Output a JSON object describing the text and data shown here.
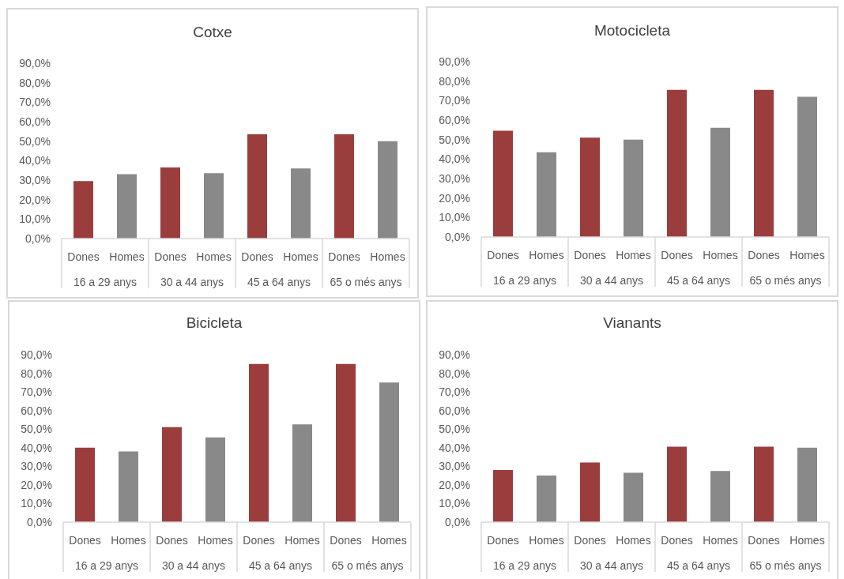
{
  "chart_data": [
    {
      "type": "bar",
      "title": "Cotxe",
      "categories": [
        "16 a 29 anys",
        "30 a 44 anys",
        "45 a 64 anys",
        "65 o més anys"
      ],
      "series": [
        {
          "name": "Dones",
          "color": "#9b3d3d",
          "values": [
            29.5,
            36.5,
            53.5,
            53.5
          ]
        },
        {
          "name": "Homes",
          "color": "#898989",
          "values": [
            33,
            33.5,
            36,
            50
          ]
        }
      ],
      "ylim": [
        0,
        90
      ],
      "yticks": [
        {
          "value": 0,
          "label": "0,0%"
        },
        {
          "value": 10,
          "label": "10,0%"
        },
        {
          "value": 20,
          "label": "20,0%"
        },
        {
          "value": 30,
          "label": "30,0%"
        },
        {
          "value": 40,
          "label": "40,0%"
        },
        {
          "value": 50,
          "label": "50,0%"
        },
        {
          "value": 60,
          "label": "60,0%"
        },
        {
          "value": 70,
          "label": "70,0%"
        },
        {
          "value": 80,
          "label": "80,0%"
        },
        {
          "value": 90,
          "label": "90,0%"
        }
      ]
    },
    {
      "type": "bar",
      "title": "Motocicleta",
      "categories": [
        "16 a 29 anys",
        "30 a 44 anys",
        "45 a 64 anys",
        "65 o més anys"
      ],
      "series": [
        {
          "name": "Dones",
          "color": "#9b3d3d",
          "values": [
            54.5,
            51,
            75.5,
            75.5
          ]
        },
        {
          "name": "Homes",
          "color": "#898989",
          "values": [
            43.5,
            50,
            56,
            72
          ]
        }
      ],
      "ylim": [
        0,
        90
      ],
      "yticks": [
        {
          "value": 0,
          "label": "0,0%"
        },
        {
          "value": 10,
          "label": "10,0%"
        },
        {
          "value": 20,
          "label": "20,0%"
        },
        {
          "value": 30,
          "label": "30,0%"
        },
        {
          "value": 40,
          "label": "40,0%"
        },
        {
          "value": 50,
          "label": "50,0%"
        },
        {
          "value": 60,
          "label": "60,0%"
        },
        {
          "value": 70,
          "label": "70,0%"
        },
        {
          "value": 80,
          "label": "80,0%"
        },
        {
          "value": 90,
          "label": "90,0%"
        }
      ]
    },
    {
      "type": "bar",
      "title": "Bicicleta",
      "categories": [
        "16 a 29 anys",
        "30 a 44 anys",
        "45 a 64 anys",
        "65 o més anys"
      ],
      "series": [
        {
          "name": "Dones",
          "color": "#9b3d3d",
          "values": [
            40,
            51,
            85,
            85
          ]
        },
        {
          "name": "Homes",
          "color": "#898989",
          "values": [
            38,
            45.5,
            52.5,
            75
          ]
        }
      ],
      "ylim": [
        0,
        90
      ],
      "yticks": [
        {
          "value": 0,
          "label": "0,0%"
        },
        {
          "value": 10,
          "label": "10,0%"
        },
        {
          "value": 20,
          "label": "20,0%"
        },
        {
          "value": 30,
          "label": "30,0%"
        },
        {
          "value": 40,
          "label": "40,0%"
        },
        {
          "value": 50,
          "label": "50,0%"
        },
        {
          "value": 60,
          "label": "60,0%"
        },
        {
          "value": 70,
          "label": "70,0%"
        },
        {
          "value": 80,
          "label": "80,0%"
        },
        {
          "value": 90,
          "label": "90,0%"
        }
      ]
    },
    {
      "type": "bar",
      "title": "Vianants",
      "categories": [
        "16 a 29 anys",
        "30 a 44 anys",
        "45 a 64 anys",
        "65 o més anys"
      ],
      "series": [
        {
          "name": "Dones",
          "color": "#9b3d3d",
          "values": [
            28,
            32,
            40.5,
            40.5
          ]
        },
        {
          "name": "Homes",
          "color": "#898989",
          "values": [
            25,
            26.5,
            27.5,
            40
          ]
        }
      ],
      "ylim": [
        0,
        90
      ],
      "yticks": [
        {
          "value": 0,
          "label": "0,0%"
        },
        {
          "value": 10,
          "label": "10,0%"
        },
        {
          "value": 20,
          "label": "20,0%"
        },
        {
          "value": 30,
          "label": "30,0%"
        },
        {
          "value": 40,
          "label": "40,0%"
        },
        {
          "value": 50,
          "label": "50,0%"
        },
        {
          "value": 60,
          "label": "60,0%"
        },
        {
          "value": 70,
          "label": "70,0%"
        },
        {
          "value": 80,
          "label": "80,0%"
        },
        {
          "value": 90,
          "label": "90,0%"
        }
      ]
    }
  ]
}
